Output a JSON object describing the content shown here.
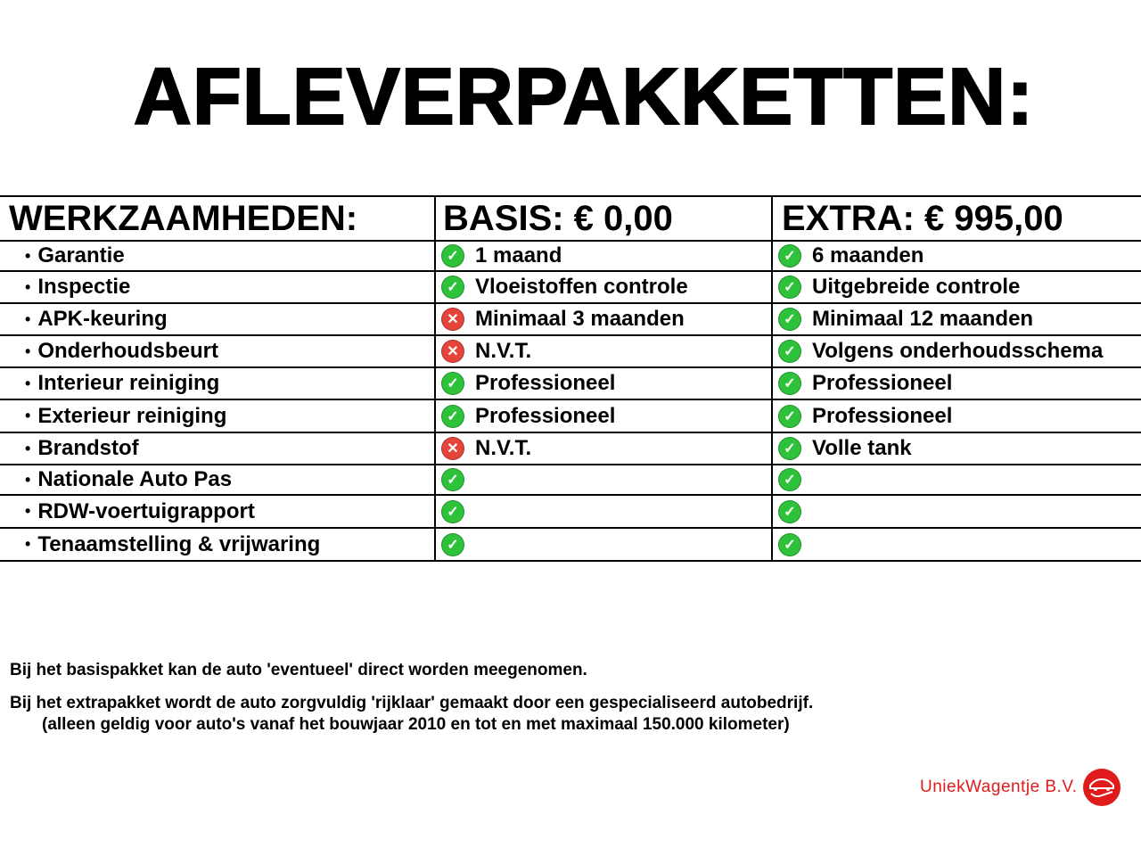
{
  "title": "AFLEVERPAKKETTEN:",
  "table": {
    "headers": [
      "WERKZAAMHEDEN:",
      "BASIS: € 0,00",
      "EXTRA: € 995,00"
    ],
    "rows": [
      {
        "label": "Garantie",
        "basis": {
          "status": "check",
          "text": "1 maand"
        },
        "extra": {
          "status": "check",
          "text": "6 maanden"
        }
      },
      {
        "label": "Inspectie",
        "basis": {
          "status": "check",
          "text": "Vloeistoffen controle"
        },
        "extra": {
          "status": "check",
          "text": "Uitgebreide controle"
        }
      },
      {
        "label": "APK-keuring",
        "basis": {
          "status": "cross",
          "text": "Minimaal 3 maanden"
        },
        "extra": {
          "status": "check",
          "text": "Minimaal 12 maanden"
        }
      },
      {
        "label": "Onderhoudsbeurt",
        "basis": {
          "status": "cross",
          "text": "N.V.T."
        },
        "extra": {
          "status": "check",
          "text": "Volgens onderhoudsschema"
        }
      },
      {
        "label": "Interieur reiniging",
        "basis": {
          "status": "check",
          "text": "Professioneel"
        },
        "extra": {
          "status": "check",
          "text": "Professioneel"
        }
      },
      {
        "label": "Exterieur reiniging",
        "basis": {
          "status": "check",
          "text": "Professioneel"
        },
        "extra": {
          "status": "check",
          "text": "Professioneel"
        }
      },
      {
        "label": "Brandstof",
        "basis": {
          "status": "cross",
          "text": "N.V.T."
        },
        "extra": {
          "status": "check",
          "text": "Volle tank"
        }
      },
      {
        "label": "Nationale Auto Pas",
        "basis": {
          "status": "check",
          "text": ""
        },
        "extra": {
          "status": "check",
          "text": ""
        }
      },
      {
        "label": "RDW-voertuigrapport",
        "basis": {
          "status": "check",
          "text": ""
        },
        "extra": {
          "status": "check",
          "text": ""
        }
      },
      {
        "label": "Tenaamstelling & vrijwaring",
        "basis": {
          "status": "check",
          "text": ""
        },
        "extra": {
          "status": "check",
          "text": ""
        }
      }
    ]
  },
  "notes": [
    "Bij het basispakket kan de auto 'eventueel' direct worden meegenomen.",
    "Bij het extrapakket wordt de auto zorgvuldig 'rijklaar' gemaakt door een gespecialiseerd autobedrijf.",
    "(alleen geldig voor auto's vanaf het bouwjaar 2010 en tot en met maximaal 150.000 kilometer)"
  ],
  "logo": {
    "text": "UniekWagentje B.V.",
    "color": "#e01b1b",
    "icon": "car-hand-icon"
  },
  "colors": {
    "check": "#2ec23a",
    "cross": "#e5443a"
  }
}
